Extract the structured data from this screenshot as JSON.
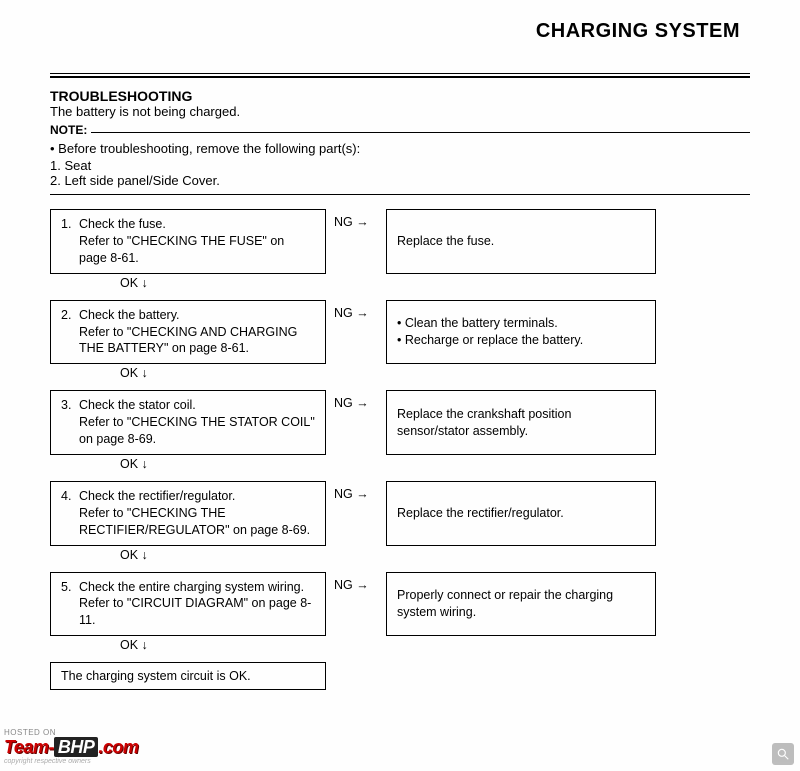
{
  "header": {
    "title": "CHARGING SYSTEM"
  },
  "section": {
    "title": "TROUBLESHOOTING",
    "subtitle": "The battery is not being charged.",
    "note_label": "NOTE:",
    "prep_intro": "• Before troubleshooting, remove the following part(s):",
    "prep_items": {
      "a": "1.  Seat",
      "b": "2.  Left side panel/Side Cover."
    }
  },
  "steps": [
    {
      "num": "1.",
      "text": "Check the fuse.\nRefer to \"CHECKING THE FUSE\" on page 8-61.",
      "ng": "NG →",
      "action": "Replace the fuse.",
      "ok": "OK ↓"
    },
    {
      "num": "2.",
      "text": "Check the battery.\nRefer to \"CHECKING AND CHARGING THE BATTERY\" on page 8-61.",
      "ng": "NG →",
      "action_list": {
        "a": "• Clean the battery terminals.",
        "b": "• Recharge or replace the battery."
      },
      "ok": "OK ↓"
    },
    {
      "num": "3.",
      "text": "Check the stator coil.\nRefer to \"CHECKING THE STATOR COIL\" on page 8-69.",
      "ng": "NG →",
      "action": "Replace the crankshaft position sensor/stator assembly.",
      "ok": "OK ↓"
    },
    {
      "num": "4.",
      "text": "Check the rectifier/regulator.\nRefer to \"CHECKING THE RECTIFIER/REGULATOR\" on page 8-69.",
      "ng": "NG →",
      "action": "Replace the rectifier/regulator.",
      "ok": "OK ↓"
    },
    {
      "num": "5.",
      "text": "Check the entire charging system wiring.\nRefer to \"CIRCUIT DIAGRAM\" on page 8-11.",
      "ng": "NG →",
      "action": "Properly connect or repair the charging system wiring.",
      "ok": "OK ↓"
    }
  ],
  "final": "The charging system circuit is OK.",
  "watermark": {
    "hosted": "HOSTED ON",
    "team": "Team-",
    "bhp": "BHP",
    "dotcom": ".com",
    "copy": "copyright respective owners"
  }
}
